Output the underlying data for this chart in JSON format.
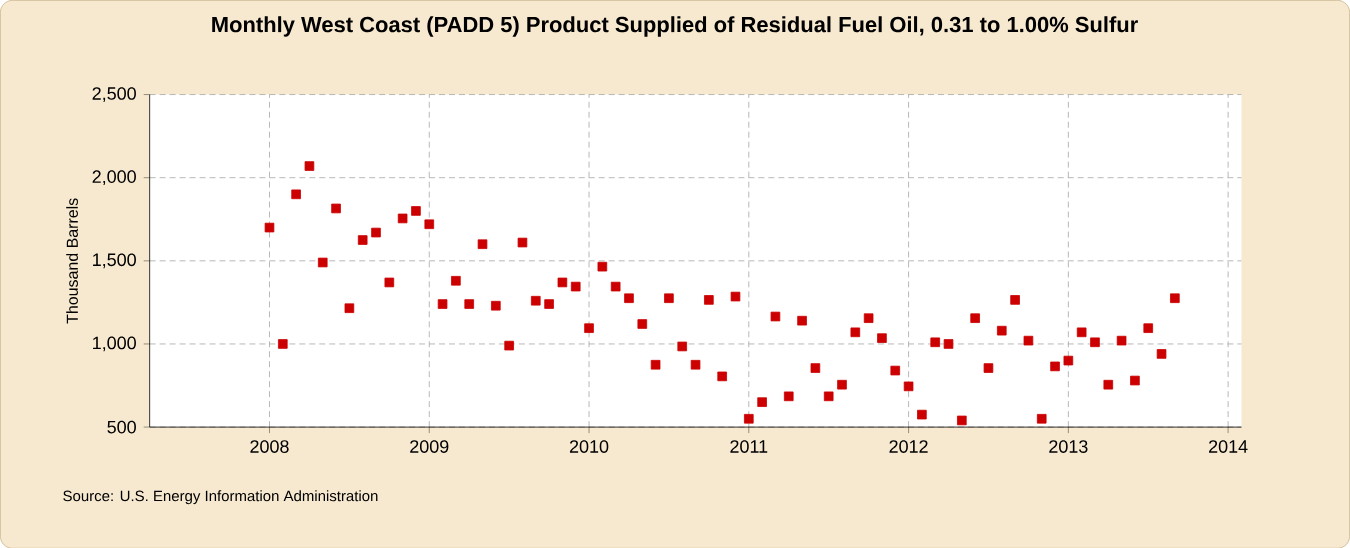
{
  "chart_data": {
    "type": "scatter",
    "title": "Monthly West Coast (PADD 5) Product Supplied of Residual Fuel Oil, 0.31 to 1.00% Sulfur",
    "ylabel": "Thousand Barrels",
    "annotations": [
      "Source: U.S. Energy Information Administration"
    ],
    "x": [
      "2008-01",
      "2008-02",
      "2008-03",
      "2008-04",
      "2008-05",
      "2008-06",
      "2008-07",
      "2008-08",
      "2008-09",
      "2008-10",
      "2008-11",
      "2008-12",
      "2009-01",
      "2009-02",
      "2009-03",
      "2009-04",
      "2009-05",
      "2009-06",
      "2009-07",
      "2009-08",
      "2009-09",
      "2009-10",
      "2009-11",
      "2009-12",
      "2010-01",
      "2010-02",
      "2010-03",
      "2010-04",
      "2010-05",
      "2010-06",
      "2010-07",
      "2010-08",
      "2010-09",
      "2010-10",
      "2010-11",
      "2010-12",
      "2011-01",
      "2011-02",
      "2011-03",
      "2011-04",
      "2011-05",
      "2011-06",
      "2011-07",
      "2011-08",
      "2011-09",
      "2011-10",
      "2011-11",
      "2011-12",
      "2012-01",
      "2012-02",
      "2012-03",
      "2012-04",
      "2012-05",
      "2012-06",
      "2012-07",
      "2012-08",
      "2012-09",
      "2012-10",
      "2012-11",
      "2012-12",
      "2013-01",
      "2013-02",
      "2013-03",
      "2013-04",
      "2013-05",
      "2013-06",
      "2013-07",
      "2013-08",
      "2013-09"
    ],
    "series": [
      {
        "color": "#cc0000",
        "values": [
          1700,
          1000,
          1900,
          2070,
          1490,
          1815,
          1215,
          1625,
          1670,
          1370,
          1755,
          1800,
          1720,
          1240,
          1380,
          1240,
          1600,
          1230,
          990,
          1610,
          1260,
          1240,
          1370,
          1345,
          1095,
          1465,
          1345,
          1275,
          1120,
          875,
          1275,
          985,
          875,
          1265,
          805,
          1285,
          550,
          650,
          1165,
          685,
          1140,
          855,
          685,
          755,
          1070,
          1155,
          1035,
          840,
          745,
          575,
          1010,
          1000,
          540,
          1155,
          855,
          1080,
          1265,
          1020,
          550,
          865,
          900,
          1070,
          1010,
          755,
          1020,
          780,
          1095,
          940,
          1275
        ]
      }
    ],
    "xlim": [
      "2007-04",
      "2014-02"
    ],
    "xticks": [
      "2008",
      "2009",
      "2010",
      "2011",
      "2012",
      "2013",
      "2014"
    ],
    "ylim": [
      500,
      2500
    ],
    "yticks": [
      {
        "value": 500,
        "label": "500"
      },
      {
        "value": 1000,
        "label": "1,000"
      },
      {
        "value": 1500,
        "label": "1,500"
      },
      {
        "value": 2000,
        "label": "2,000"
      },
      {
        "value": 2500,
        "label": "2,500"
      }
    ],
    "grid": true,
    "marker": "square"
  }
}
